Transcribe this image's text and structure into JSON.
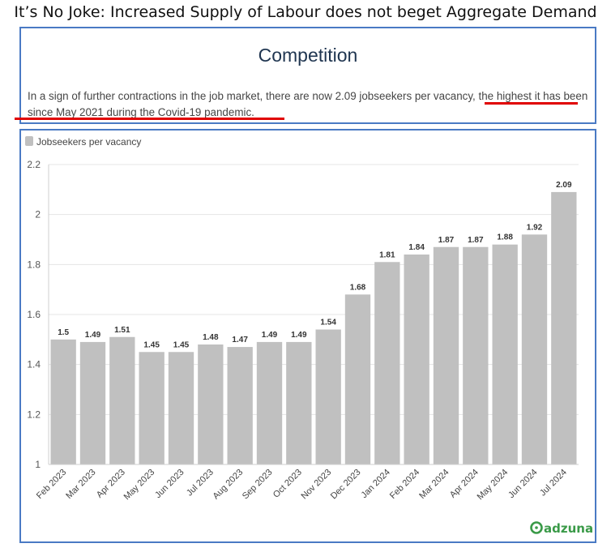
{
  "headline": "It’s No Joke:  Increased Supply of Labour does not beget Aggregate Demand",
  "panel": {
    "title": "Competition",
    "text_part1": "In a sign of further contractions in the job market, there are now 2.09 jobseekers per vacancy, ",
    "text_part2": "the highest it has been since May 2021 during the Covid-19 pandemic",
    "text_part3": "."
  },
  "brand": "adzuna",
  "colors": {
    "bar": "#c0c0c0",
    "underline": "#e00000",
    "frame": "#4a7ac4",
    "brand": "#3a9a48"
  },
  "chart_data": {
    "type": "bar",
    "categories": [
      "Feb 2023",
      "Mar 2023",
      "Apr 2023",
      "May 2023",
      "Jun 2023",
      "Jul 2023",
      "Aug 2023",
      "Sep 2023",
      "Oct 2023",
      "Nov 2023",
      "Dec 2023",
      "Jan 2024",
      "Feb 2024",
      "Mar 2024",
      "Apr 2024",
      "May 2024",
      "Jun 2024",
      "Jul 2024"
    ],
    "series": [
      {
        "name": "Jobseekers per vacancy",
        "values": [
          1.5,
          1.49,
          1.51,
          1.45,
          1.45,
          1.48,
          1.47,
          1.49,
          1.49,
          1.54,
          1.68,
          1.81,
          1.84,
          1.87,
          1.87,
          1.88,
          1.92,
          2.09
        ],
        "labels": [
          "1.5",
          "1.49",
          "1.51",
          "1.45",
          "1.45",
          "1.48",
          "1.47",
          "1.49",
          "1.49",
          "1.54",
          "1.68",
          "1.81",
          "1.84",
          "1.87",
          "1.87",
          "1.88",
          "1.92",
          "2.09"
        ]
      }
    ],
    "yticks": [
      "1",
      "1.2",
      "1.4",
      "1.6",
      "1.8",
      "2",
      "2.2"
    ],
    "ylim": [
      1,
      2.2
    ],
    "xlabel": "",
    "ylabel": "",
    "legend": "top-left",
    "grid": true
  }
}
